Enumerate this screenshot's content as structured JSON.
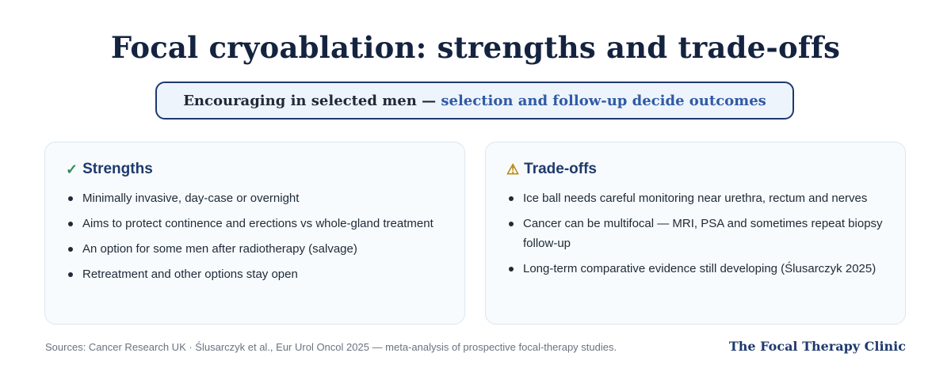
{
  "title": "Focal cryoablation: strengths and trade-offs",
  "banner": {
    "lead": "Encouraging in selected men —",
    "accent": "selection and follow-up decide outcomes"
  },
  "strengths": {
    "icon": "check-icon",
    "icon_glyph": "✓",
    "heading": "Strengths",
    "items": [
      "Minimally invasive, day-case or overnight",
      "Aims to protect continence and erections vs whole-gland treatment",
      "An option for some men after radiotherapy (salvage)",
      "Retreatment and other options stay open"
    ]
  },
  "tradeoffs": {
    "icon": "warning-icon",
    "icon_glyph": "⚠",
    "heading": "Trade-offs",
    "items": [
      "Ice ball needs careful monitoring near urethra, rectum and nerves",
      "Cancer can be multifocal — MRI, PSA and sometimes repeat biopsy follow-up",
      "Long-term comparative evidence still developing (Ślusarczyk 2025)"
    ]
  },
  "footer": {
    "sources": "Sources: Cancer Research UK · Ślusarczyk et al., Eur Urol Oncol 2025 — meta-analysis of prospective focal-therapy studies.",
    "brand": "The Focal Therapy Clinic"
  },
  "colors": {
    "title": "#14233f",
    "accent": "#2f5aa6",
    "heading": "#1e3a6e",
    "check": "#2e8b57",
    "warning": "#b8860b"
  }
}
